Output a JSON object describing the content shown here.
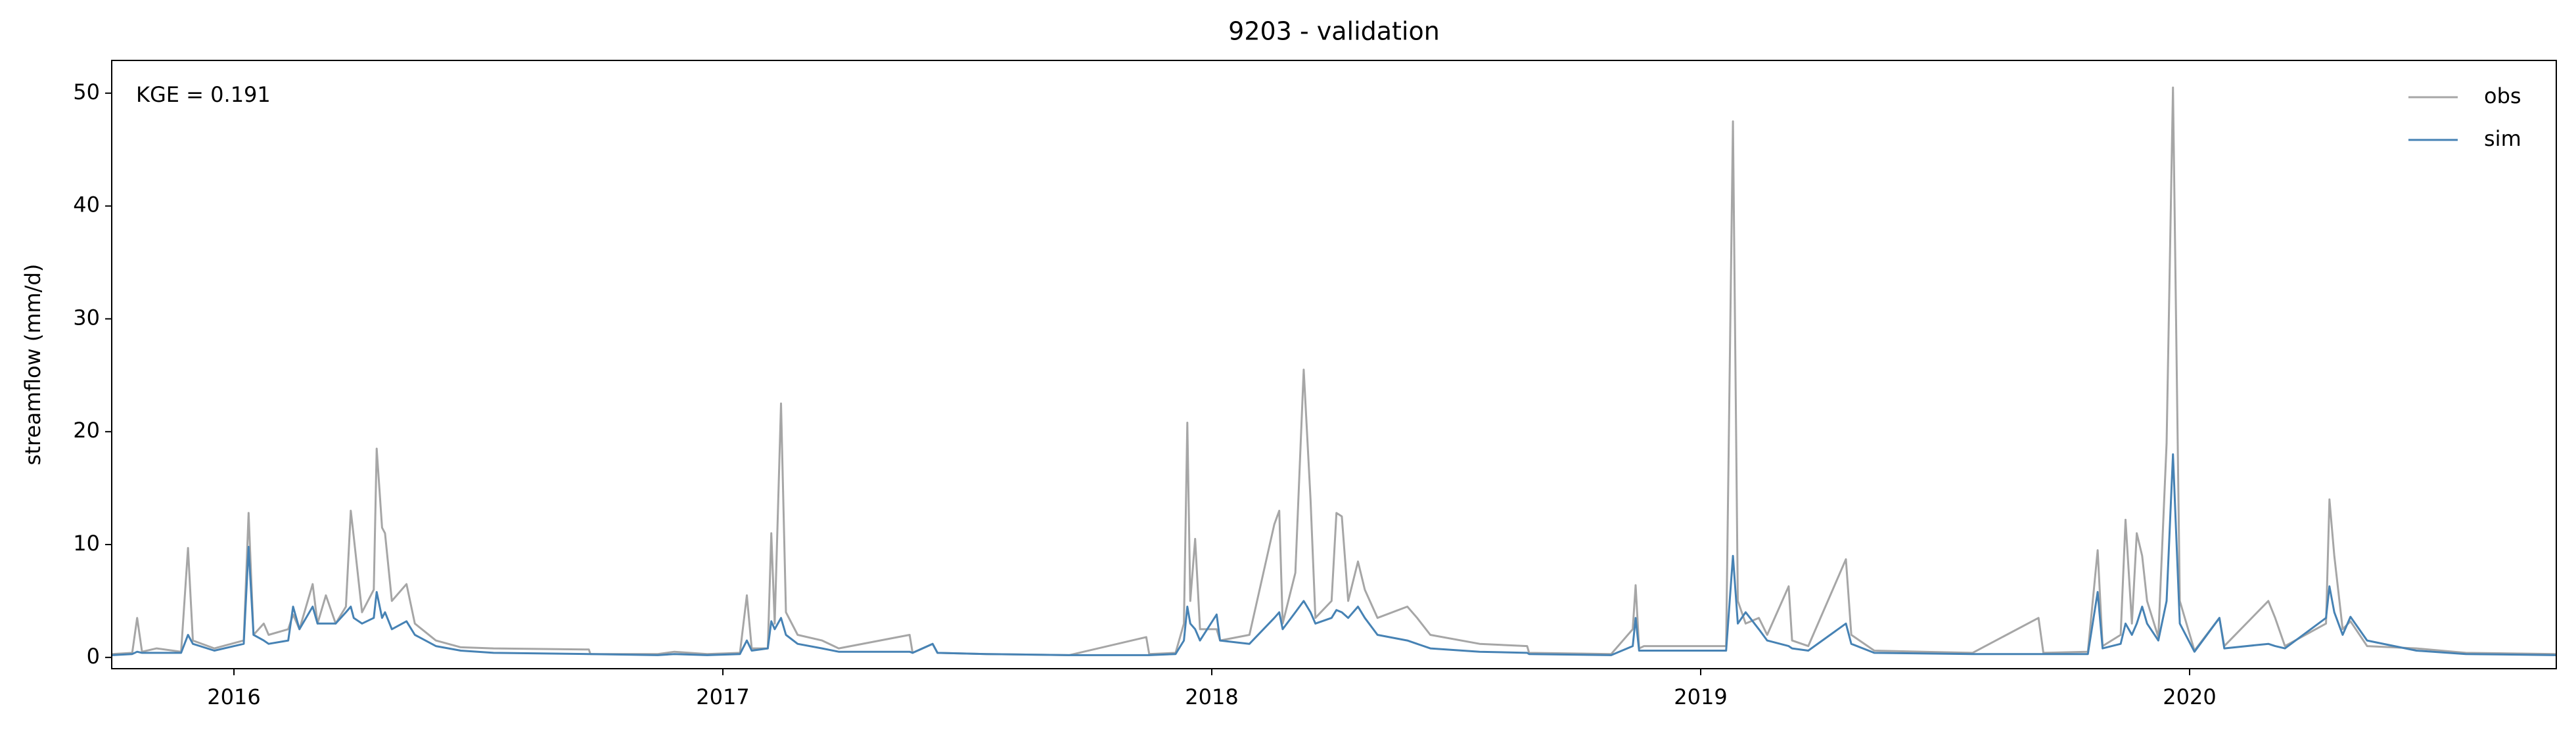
{
  "chart_data": {
    "type": "line",
    "title": "9203 - validation",
    "ylabel": "streamflow (mm/d)",
    "annotation": "KGE = 0.191",
    "x": [
      2015.751,
      2015.792,
      2015.802,
      2015.812,
      2015.842,
      2015.892,
      2015.906,
      2015.916,
      2015.96,
      2016.02,
      2016.03,
      2016.04,
      2016.061,
      2016.071,
      2016.111,
      2016.121,
      2016.134,
      2016.161,
      2016.171,
      2016.188,
      2016.208,
      2016.229,
      2016.239,
      2016.245,
      2016.262,
      2016.286,
      2016.292,
      2016.303,
      2016.309,
      2016.323,
      2016.353,
      2016.37,
      2016.413,
      2016.464,
      2016.531,
      2016.726,
      2016.729,
      2016.867,
      2016.901,
      2016.968,
      2017.035,
      2017.049,
      2017.059,
      2017.092,
      2017.099,
      2017.106,
      2017.119,
      2017.129,
      2017.153,
      2017.203,
      2017.237,
      2017.382,
      2017.388,
      2017.429,
      2017.439,
      2017.539,
      2017.708,
      2017.866,
      2017.872,
      2017.926,
      2017.943,
      2017.95,
      2017.956,
      2017.966,
      2017.976,
      2018.01,
      2018.017,
      2018.077,
      2018.128,
      2018.138,
      2018.145,
      2018.171,
      2018.188,
      2018.202,
      2018.212,
      2018.245,
      2018.255,
      2018.266,
      2018.279,
      2018.299,
      2018.313,
      2018.339,
      2018.4,
      2018.42,
      2018.447,
      2018.548,
      2018.645,
      2018.649,
      2018.817,
      2018.861,
      2018.867,
      2018.874,
      2018.884,
      2019.052,
      2019.066,
      2019.076,
      2019.092,
      2019.119,
      2019.136,
      2019.18,
      2019.187,
      2019.22,
      2019.297,
      2019.308,
      2019.355,
      2019.556,
      2019.691,
      2019.701,
      2019.792,
      2019.812,
      2019.822,
      2019.859,
      2019.869,
      2019.882,
      2019.892,
      2019.903,
      2019.913,
      2019.936,
      2019.953,
      2019.966,
      2019.98,
      2020.01,
      2020.061,
      2020.071,
      2020.161,
      2020.175,
      2020.195,
      2020.279,
      2020.286,
      2020.296,
      2020.313,
      2020.329,
      2020.363,
      2020.464,
      2020.565,
      2020.75
    ],
    "series": [
      {
        "name": "obs",
        "color": "#a6a6a6",
        "values": [
          0.3,
          0.4,
          3.5,
          0.5,
          0.8,
          0.5,
          9.7,
          1.5,
          0.8,
          1.5,
          12.8,
          2.0,
          3.0,
          2.0,
          2.5,
          3.8,
          2.5,
          6.5,
          3.0,
          5.5,
          3.0,
          4.5,
          13.0,
          10.7,
          4.0,
          6.0,
          18.5,
          11.5,
          11.0,
          5.0,
          6.5,
          3.0,
          1.5,
          0.9,
          0.8,
          0.7,
          0.3,
          0.3,
          0.5,
          0.3,
          0.4,
          5.5,
          0.8,
          0.8,
          11.0,
          3.0,
          22.5,
          4.0,
          2.0,
          1.5,
          0.8,
          2.0,
          0.4,
          1.2,
          0.4,
          0.3,
          0.2,
          1.8,
          0.3,
          0.4,
          3.0,
          20.8,
          5.0,
          10.5,
          2.5,
          2.5,
          1.5,
          2.0,
          11.8,
          13.0,
          3.0,
          7.5,
          25.5,
          14.0,
          3.5,
          5.0,
          12.8,
          12.5,
          5.0,
          8.5,
          6.0,
          3.5,
          4.5,
          3.5,
          2.0,
          1.2,
          1.0,
          0.4,
          0.3,
          2.5,
          6.4,
          0.8,
          1.0,
          1.0,
          47.5,
          5.0,
          3.0,
          3.5,
          2.0,
          6.3,
          1.5,
          1.0,
          8.7,
          2.0,
          0.6,
          0.4,
          3.5,
          0.4,
          0.5,
          9.5,
          1.0,
          2.0,
          12.2,
          3.0,
          11.0,
          9.0,
          5.0,
          1.8,
          19.0,
          50.5,
          5.0,
          0.6,
          3.5,
          1.0,
          5.0,
          3.5,
          1.0,
          3.0,
          14.0,
          9.0,
          2.5,
          3.2,
          1.0,
          0.8,
          0.4,
          0.3
        ]
      },
      {
        "name": "sim",
        "color": "#4682b4",
        "values": [
          0.2,
          0.3,
          0.5,
          0.4,
          0.4,
          0.4,
          2.0,
          1.2,
          0.6,
          1.2,
          9.8,
          2.0,
          1.5,
          1.2,
          1.5,
          4.5,
          2.5,
          4.5,
          3.0,
          3.0,
          3.0,
          4.0,
          4.5,
          3.5,
          3.0,
          3.5,
          5.8,
          3.5,
          4.0,
          2.5,
          3.2,
          2.0,
          1.0,
          0.6,
          0.4,
          0.3,
          0.3,
          0.2,
          0.3,
          0.2,
          0.3,
          1.5,
          0.6,
          0.8,
          3.2,
          2.5,
          3.5,
          2.0,
          1.2,
          0.8,
          0.5,
          0.5,
          0.4,
          1.2,
          0.4,
          0.3,
          0.2,
          0.2,
          0.2,
          0.3,
          1.5,
          4.5,
          3.0,
          2.5,
          1.5,
          3.8,
          1.5,
          1.2,
          3.5,
          4.0,
          2.5,
          4.0,
          5.0,
          4.0,
          3.0,
          3.5,
          4.2,
          4.0,
          3.5,
          4.5,
          3.5,
          2.0,
          1.5,
          1.2,
          0.8,
          0.5,
          0.4,
          0.3,
          0.2,
          1.0,
          3.5,
          0.6,
          0.6,
          0.6,
          9.0,
          3.0,
          4.0,
          2.5,
          1.5,
          1.0,
          0.8,
          0.6,
          3.0,
          1.2,
          0.4,
          0.3,
          0.3,
          0.3,
          0.3,
          5.8,
          0.8,
          1.2,
          3.0,
          2.0,
          3.0,
          4.5,
          3.0,
          1.5,
          5.0,
          18.0,
          3.0,
          0.5,
          3.5,
          0.8,
          1.2,
          1.0,
          0.8,
          3.5,
          6.3,
          4.0,
          2.0,
          3.6,
          1.5,
          0.6,
          0.3,
          0.2
        ]
      }
    ],
    "xlim": [
      2015.75,
      2020.75
    ],
    "xticks": [
      2016,
      2017,
      2018,
      2019,
      2020
    ],
    "ylim": [
      -1.0,
      52.9
    ],
    "yticks": [
      0,
      10,
      20,
      30,
      40,
      50
    ],
    "legend": "upper right"
  }
}
